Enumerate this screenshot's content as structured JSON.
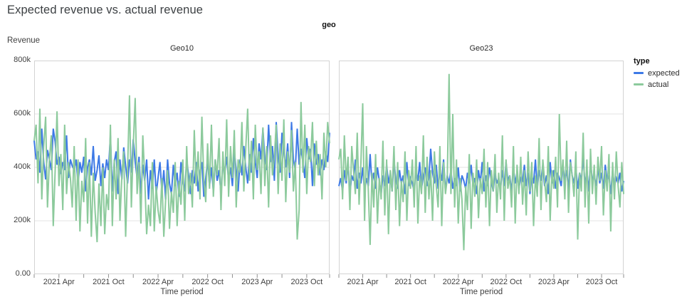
{
  "page": {
    "title": "Expected revenue vs. actual revenue"
  },
  "header": {
    "facet_field": "geo"
  },
  "y_axis": {
    "title": "Revenue",
    "tick_labels": [
      "800k",
      "600k",
      "400k",
      "200k",
      "0.00"
    ]
  },
  "x_axis": {
    "title": "Time period",
    "tick_labels": [
      "2021 Apr",
      "2021 Oct",
      "2022 Apr",
      "2022 Oct",
      "2023 Apr",
      "2023 Oct"
    ]
  },
  "legend": {
    "title": "type",
    "items": [
      {
        "label": "expected",
        "color": "#3d79e6"
      },
      {
        "label": "actual",
        "color": "#8cca9c"
      }
    ]
  },
  "chart_data": {
    "type": "line",
    "title": "Expected revenue vs. actual revenue",
    "facet_field": "geo",
    "legend_position": "right",
    "grid": true,
    "x": {
      "field": "Time period",
      "start": "2021-01",
      "frequency": "weekly",
      "tick_weeks": [
        13,
        39,
        65,
        91,
        117,
        143
      ],
      "tick_labels": [
        "2021 Apr",
        "2021 Oct",
        "2022 Apr",
        "2022 Oct",
        "2023 Apr",
        "2023 Oct"
      ],
      "minor_tick_weeks": [
        0,
        13,
        26,
        39,
        52,
        65,
        78,
        91,
        104,
        117,
        130,
        143,
        155
      ]
    },
    "y": {
      "field": "Revenue",
      "unit": "thousands",
      "lim": [
        0,
        800
      ],
      "tick_values": [
        0,
        200,
        400,
        600,
        800
      ],
      "gridline_values": [
        200,
        400,
        600
      ]
    },
    "series_colors": {
      "expected": "#3d79e6",
      "actual": "#8cca9c"
    },
    "facets": [
      {
        "title": "Geo10",
        "series": [
          {
            "name": "expected",
            "values": [
              500,
              430,
              460,
              380,
              545,
              420,
              355,
              465,
              430,
              390,
              545,
              495,
              410,
              440,
              375,
              420,
              390,
              520,
              360,
              430,
              405,
              390,
              430,
              340,
              420,
              380,
              440,
              310,
              400,
              430,
              370,
              480,
              350,
              390,
              445,
              330,
              415,
              360,
              430,
              390,
              520,
              310,
              420,
              460,
              300,
              430,
              355,
              475,
              405,
              340,
              430,
              380,
              505,
              420,
              360,
              440,
              300,
              410,
              350,
              430,
              280,
              390,
              320,
              430,
              300,
              360,
              420,
              310,
              390,
              280,
              430,
              340,
              300,
              410,
              330,
              380,
              290,
              420,
              350,
              310,
              430,
              370,
              300,
              390,
              340,
              420,
              310,
              380,
              420,
              290,
              360,
              430,
              330,
              400,
              310,
              430,
              350,
              390,
              300,
              420,
              380,
              440,
              350,
              400,
              330,
              460,
              390,
              310,
              430,
              370,
              480,
              400,
              340,
              450,
              380,
              510,
              420,
              360,
              490,
              430,
              545,
              430,
              390,
              560,
              420,
              480,
              350,
              570,
              440,
              380,
              530,
              460,
              400,
              490,
              360,
              570,
              430,
              390,
              545,
              410,
              470,
              420,
              360,
              510,
              430,
              470,
              330,
              490,
              410,
              450,
              370,
              430,
              390,
              460,
              420,
              530
            ]
          },
          {
            "name": "actual",
            "values": [
              500,
              560,
              340,
              620,
              280,
              480,
              590,
              250,
              430,
              520,
              180,
              390,
              610,
              330,
              450,
              240,
              560,
              300,
              420,
              360,
              250,
              480,
              200,
              430,
              160,
              350,
              270,
              510,
              190,
              420,
              140,
              380,
              230,
              120,
              340,
              180,
              400,
              150,
              300,
              240,
              560,
              180,
              430,
              280,
              510,
              200,
              370,
              460,
              140,
              390,
              670,
              250,
              480,
              660,
              300,
              420,
              190,
              520,
              360,
              150,
              260,
              180,
              420,
              160,
              330,
              240,
              190,
              360,
              140,
              280,
              390,
              170,
              310,
              230,
              420,
              180,
              350,
              260,
              430,
              200,
              480,
              300,
              380,
              250,
              540,
              330,
              460,
              280,
              590,
              350,
              270,
              490,
              320,
              560,
              290,
              430,
              370,
              510,
              240,
              460,
              330,
              580,
              290,
              480,
              360,
              540,
              250,
              430,
              380,
              570,
              310,
              470,
              620,
              350,
              500,
              280,
              560,
              390,
              460,
              300,
              550,
              330,
              480,
              250,
              520,
              370,
              440,
              560,
              300,
              490,
              350,
              580,
              270,
              460,
              380,
              540,
              310,
              420,
              130,
              240,
              645,
              380,
              560,
              300,
              480,
              420,
              570,
              330,
              500,
              370,
              450,
              280,
              530,
              400,
              570,
              490
            ]
          }
        ]
      },
      {
        "title": "Geo23",
        "series": [
          {
            "name": "expected",
            "values": [
              330,
              360,
              310,
              390,
              340,
              420,
              300,
              370,
              350,
              430,
              320,
              380,
              340,
              400,
              310,
              360,
              330,
              450,
              340,
              380,
              320,
              400,
              350,
              300,
              370,
              330,
              410,
              340,
              380,
              310,
              430,
              350,
              320,
              390,
              340,
              370,
              300,
              420,
              330,
              360,
              340,
              310,
              390,
              350,
              420,
              320,
              370,
              400,
              330,
              360,
              470,
              380,
              340,
              410,
              320,
              390,
              350,
              430,
              310,
              370,
              340,
              390,
              320,
              360,
              330,
              400,
              310,
              370,
              350,
              320,
              380,
              340,
              410,
              330,
              360,
              300,
              390,
              340,
              420,
              310,
              370,
              330,
              400,
              350,
              310,
              380,
              340,
              360,
              320,
              390,
              330,
              420,
              350,
              370,
              310,
              400,
              340,
              380,
              320,
              360,
              350,
              410,
              330,
              380,
              300,
              370,
              340,
              430,
              320,
              390,
              350,
              410,
              330,
              370,
              300,
              420,
              340,
              390,
              320,
              380,
              360,
              330,
              410,
              350,
              390,
              310,
              430,
              370,
              340,
              400,
              320,
              380,
              350,
              440,
              330,
              390,
              310,
              420,
              350,
              370,
              330,
              400,
              340,
              380,
              320,
              410,
              350,
              370,
              300,
              390,
              330,
              360,
              340,
              380,
              310,
              350
            ]
          },
          {
            "name": "actual",
            "values": [
              430,
              470,
              280,
              520,
              350,
              440,
              240,
              480,
              390,
              300,
              530,
              260,
              420,
              640,
              200,
              480,
              320,
              110,
              380,
              250,
              450,
              190,
              360,
              280,
              500,
              220,
              430,
              150,
              390,
              310,
              480,
              240,
              420,
              180,
              350,
              270,
              460,
              200,
              390,
              320,
              430,
              250,
              480,
              190,
              370,
              300,
              520,
              230,
              440,
              280,
              390,
              200,
              460,
              330,
              250,
              480,
              180,
              420,
              300,
              360,
              750,
              300,
              600,
              250,
              430,
              190,
              360,
              280,
              90,
              330,
              240,
              450,
              170,
              380,
              290,
              430,
              210,
              360,
              300,
              470,
              250,
              420,
              180,
              390,
              310,
              450,
              230,
              380,
              280,
              520,
              200,
              430,
              320,
              370,
              250,
              480,
              190,
              410,
              300,
              440,
              260,
              390,
              220,
              460,
              310,
              420,
              180,
              370,
              290,
              510,
              240,
              430,
              350,
              270,
              480,
              200,
              390,
              320,
              440,
              250,
              600,
              350,
              430,
              280,
              500,
              230,
              420,
              370,
              290,
              460,
              130,
              380,
              310,
              530,
              250,
              430,
              190,
              470,
              300,
              410,
              260,
              440,
              350,
              480,
              220,
              390,
              310,
              450,
              160,
              420,
              280,
              460,
              330,
              250,
              420,
              300
            ]
          }
        ]
      }
    ]
  }
}
